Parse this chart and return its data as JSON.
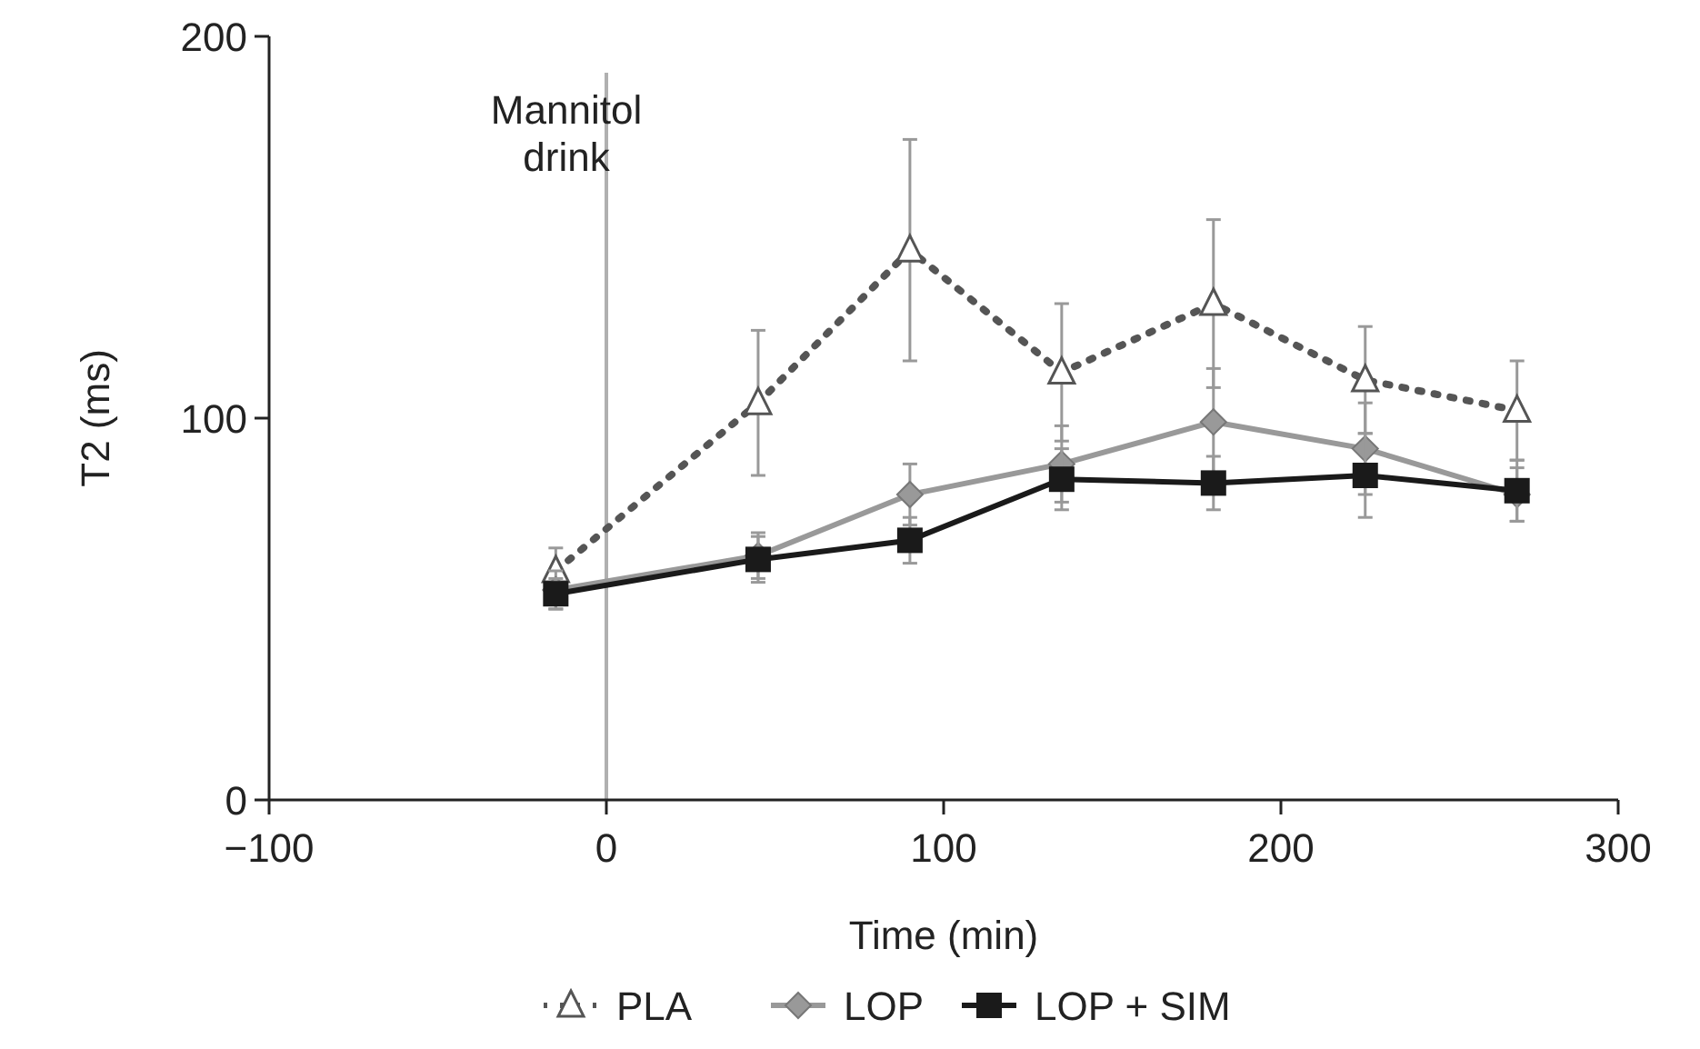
{
  "chart_data": {
    "type": "line",
    "xlabel": "Time (min)",
    "ylabel": "T2 (ms)",
    "xlim": [
      -100,
      300
    ],
    "xticks": [
      {
        "value": -100,
        "label": "−100"
      },
      0,
      100,
      200,
      300
    ],
    "ylim": [
      0,
      200
    ],
    "yticks": [
      0,
      100,
      200
    ],
    "grid": false,
    "legend": "bottom",
    "x": [
      -15,
      45,
      90,
      135,
      180,
      225,
      270
    ],
    "ref_lines": [
      {
        "axis": "x",
        "value": 0,
        "label": "Mannitol drink",
        "color": "#b0b0b0",
        "line_style": "solid"
      }
    ],
    "series": [
      {
        "name": "PLA",
        "color": "#555555",
        "marker": "triangle",
        "line_style": "dotted",
        "values": [
          60,
          104,
          144,
          112,
          130,
          110,
          102
        ],
        "errors": [
          6,
          19,
          29,
          18,
          22,
          14,
          13
        ]
      },
      {
        "name": "LOP",
        "color": "#999999",
        "marker": "diamond",
        "line_style": "solid",
        "values": [
          55,
          64,
          80,
          88,
          99,
          92,
          80
        ],
        "errors": [
          5,
          6,
          8,
          10,
          14,
          12,
          7
        ]
      },
      {
        "name": "LOP + SIM",
        "color": "#1a1a1a",
        "marker": "square",
        "line_style": "solid",
        "values": [
          54,
          63,
          68,
          84,
          83,
          85,
          81
        ],
        "errors": [
          4,
          6,
          6,
          8,
          7,
          11,
          8
        ]
      }
    ]
  }
}
